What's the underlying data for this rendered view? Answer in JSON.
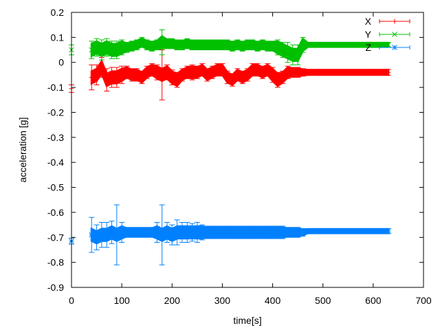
{
  "chart_data": {
    "type": "scatter",
    "style": "errorbars",
    "title": "",
    "xlabel": "time[s]",
    "ylabel": "acceleration [g]",
    "xlim": [
      0,
      700
    ],
    "ylim": [
      -0.9,
      0.2
    ],
    "xticks": [
      "0",
      "100",
      "200",
      "300",
      "400",
      "500",
      "600",
      "700"
    ],
    "yticks": [
      "-0.9",
      "-0.8",
      "-0.7",
      "-0.6",
      "-0.5",
      "-0.4",
      "-0.3",
      "-0.2",
      "-0.1",
      "0",
      "0.1",
      "0.2"
    ],
    "grid": false,
    "legend_position": "top-right",
    "x": [
      0,
      40,
      50,
      60,
      70,
      80,
      90,
      100,
      110,
      120,
      130,
      140,
      150,
      160,
      170,
      180,
      190,
      200,
      210,
      220,
      230,
      240,
      250,
      260,
      270,
      280,
      290,
      300,
      310,
      320,
      330,
      340,
      350,
      360,
      370,
      380,
      390,
      400,
      410,
      420,
      430,
      440,
      450,
      460,
      470,
      480,
      490,
      500,
      510,
      520,
      530,
      540,
      550,
      560,
      570,
      580,
      590,
      600,
      610,
      620,
      630
    ],
    "series": [
      {
        "name": "X",
        "color": "#ff0000",
        "marker": "plus",
        "values": [
          -0.105,
          -0.06,
          -0.05,
          -0.02,
          -0.07,
          -0.06,
          -0.06,
          -0.05,
          -0.04,
          -0.05,
          -0.05,
          -0.06,
          -0.04,
          -0.03,
          -0.04,
          -0.05,
          -0.04,
          -0.06,
          -0.07,
          -0.05,
          -0.04,
          -0.04,
          -0.04,
          -0.03,
          -0.05,
          -0.04,
          -0.03,
          -0.03,
          -0.06,
          -0.07,
          -0.05,
          -0.06,
          -0.05,
          -0.03,
          -0.03,
          -0.04,
          -0.03,
          -0.05,
          -0.07,
          -0.06,
          -0.04,
          -0.04,
          -0.04,
          -0.04,
          -0.04,
          -0.04,
          -0.04,
          -0.04,
          -0.04,
          -0.04,
          -0.04,
          -0.04,
          -0.04,
          -0.04,
          -0.04,
          -0.04,
          -0.04,
          -0.04,
          -0.04,
          -0.04,
          -0.04
        ],
        "errors": [
          0.015,
          0.05,
          0.04,
          0.04,
          0.045,
          0.04,
          0.04,
          0.035,
          0.025,
          0.025,
          0.025,
          0.025,
          0.025,
          0.025,
          0.03,
          0.1,
          0.03,
          0.03,
          0.03,
          0.025,
          0.025,
          0.03,
          0.025,
          0.025,
          0.025,
          0.025,
          0.025,
          0.025,
          0.025,
          0.025,
          0.025,
          0.025,
          0.025,
          0.025,
          0.025,
          0.025,
          0.025,
          0.03,
          0.03,
          0.025,
          0.025,
          0.02,
          0.02,
          0.015,
          0.012,
          0.012,
          0.012,
          0.012,
          0.012,
          0.012,
          0.012,
          0.012,
          0.012,
          0.012,
          0.012,
          0.012,
          0.012,
          0.012,
          0.012,
          0.012,
          0.012
        ]
      },
      {
        "name": "Y",
        "color": "#00c000",
        "marker": "cross",
        "values": [
          0.05,
          0.05,
          0.06,
          0.05,
          0.06,
          0.05,
          0.05,
          0.06,
          0.06,
          0.065,
          0.07,
          0.08,
          0.07,
          0.065,
          0.07,
          0.08,
          0.075,
          0.075,
          0.07,
          0.07,
          0.075,
          0.07,
          0.07,
          0.07,
          0.07,
          0.07,
          0.07,
          0.07,
          0.07,
          0.065,
          0.07,
          0.065,
          0.07,
          0.07,
          0.065,
          0.07,
          0.065,
          0.065,
          0.06,
          0.05,
          0.04,
          0.03,
          0.03,
          0.07,
          0.07,
          0.07,
          0.07,
          0.07,
          0.07,
          0.07,
          0.07,
          0.07,
          0.07,
          0.07,
          0.07,
          0.07,
          0.07,
          0.07,
          0.07,
          0.07,
          0.07
        ],
        "errors": [
          0.02,
          0.035,
          0.035,
          0.04,
          0.035,
          0.035,
          0.035,
          0.03,
          0.02,
          0.02,
          0.02,
          0.02,
          0.02,
          0.02,
          0.02,
          0.05,
          0.02,
          0.02,
          0.02,
          0.02,
          0.02,
          0.02,
          0.02,
          0.02,
          0.02,
          0.02,
          0.02,
          0.02,
          0.02,
          0.02,
          0.02,
          0.02,
          0.02,
          0.02,
          0.02,
          0.02,
          0.02,
          0.02,
          0.03,
          0.03,
          0.04,
          0.04,
          0.04,
          0.03,
          0.01,
          0.01,
          0.01,
          0.01,
          0.01,
          0.01,
          0.01,
          0.01,
          0.01,
          0.01,
          0.01,
          0.01,
          0.01,
          0.01,
          0.01,
          0.01,
          0.01
        ]
      },
      {
        "name": "Z",
        "color": "#0080ff",
        "marker": "star",
        "values": [
          -0.715,
          -0.69,
          -0.7,
          -0.69,
          -0.69,
          -0.68,
          -0.69,
          -0.68,
          -0.68,
          -0.68,
          -0.68,
          -0.68,
          -0.68,
          -0.68,
          -0.68,
          -0.69,
          -0.68,
          -0.69,
          -0.68,
          -0.68,
          -0.68,
          -0.68,
          -0.68,
          -0.68,
          -0.68,
          -0.68,
          -0.68,
          -0.68,
          -0.68,
          -0.68,
          -0.68,
          -0.68,
          -0.68,
          -0.68,
          -0.68,
          -0.68,
          -0.68,
          -0.68,
          -0.68,
          -0.68,
          -0.68,
          -0.68,
          -0.68,
          -0.68,
          -0.675,
          -0.675,
          -0.675,
          -0.675,
          -0.675,
          -0.675,
          -0.675,
          -0.675,
          -0.675,
          -0.675,
          -0.675,
          -0.675,
          -0.675,
          -0.675,
          -0.675,
          -0.675,
          -0.675
        ],
        "errors": [
          0.012,
          0.07,
          0.05,
          0.05,
          0.05,
          0.045,
          0.12,
          0.04,
          0.02,
          0.02,
          0.02,
          0.02,
          0.02,
          0.02,
          0.04,
          0.12,
          0.04,
          0.04,
          0.05,
          0.04,
          0.04,
          0.035,
          0.04,
          0.03,
          0.025,
          0.025,
          0.025,
          0.025,
          0.025,
          0.025,
          0.025,
          0.025,
          0.025,
          0.025,
          0.025,
          0.025,
          0.025,
          0.025,
          0.025,
          0.025,
          0.02,
          0.02,
          0.02,
          0.015,
          0.01,
          0.01,
          0.01,
          0.01,
          0.01,
          0.01,
          0.01,
          0.01,
          0.01,
          0.01,
          0.01,
          0.01,
          0.01,
          0.01,
          0.01,
          0.01,
          0.01
        ]
      }
    ]
  }
}
